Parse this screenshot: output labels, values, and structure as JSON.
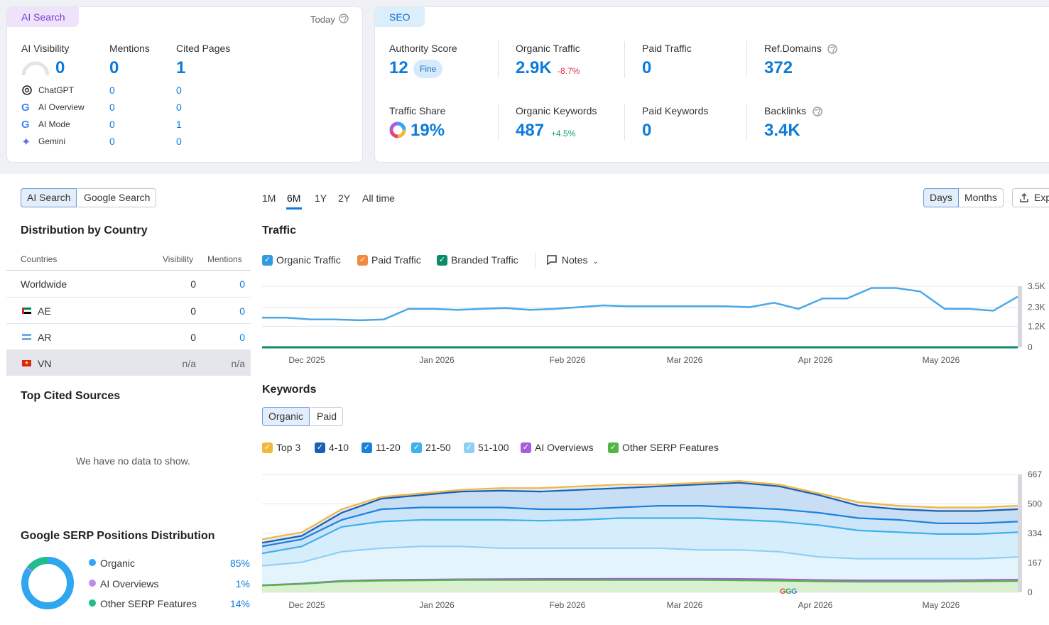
{
  "ai_card": {
    "tag": "AI Search",
    "date": "Today",
    "headers": {
      "visibility": "AI Visibility",
      "mentions": "Mentions",
      "cited": "Cited Pages"
    },
    "totals": {
      "visibility": "0",
      "mentions": "0",
      "cited": "1"
    },
    "rows": [
      {
        "name": "ChatGPT",
        "mentions": "0",
        "cited": "0"
      },
      {
        "name": "AI Overview",
        "mentions": "0",
        "cited": "0"
      },
      {
        "name": "AI Mode",
        "mentions": "0",
        "cited": "1"
      },
      {
        "name": "Gemini",
        "mentions": "0",
        "cited": "0"
      }
    ]
  },
  "seo_card": {
    "tag": "SEO",
    "authority": {
      "label": "Authority Score",
      "value": "12",
      "badge": "Fine"
    },
    "organic_traffic": {
      "label": "Organic Traffic",
      "value": "2.9K",
      "delta": "-8.7%"
    },
    "paid_traffic": {
      "label": "Paid Traffic",
      "value": "0"
    },
    "ref_domains": {
      "label": "Ref.Domains",
      "value": "372"
    },
    "traffic_share": {
      "label": "Traffic Share",
      "value": "19%"
    },
    "organic_keywords": {
      "label": "Organic Keywords",
      "value": "487",
      "delta": "+4.5%"
    },
    "paid_keywords": {
      "label": "Paid Keywords",
      "value": "0"
    },
    "backlinks": {
      "label": "Backlinks",
      "value": "3.4K"
    }
  },
  "left": {
    "toggle": {
      "ai": "AI Search",
      "google": "Google Search"
    },
    "dist_title": "Distribution by Country",
    "cols": {
      "countries": "Countries",
      "visibility": "Visibility",
      "mentions": "Mentions"
    },
    "countries": [
      {
        "name": "Worldwide",
        "visibility": "0",
        "mentions": "0"
      },
      {
        "name": "AE",
        "visibility": "0",
        "mentions": "0"
      },
      {
        "name": "AR",
        "visibility": "0",
        "mentions": "0"
      },
      {
        "name": "VN",
        "visibility": "n/a",
        "mentions": "n/a"
      }
    ],
    "cited_title": "Top Cited Sources",
    "no_data": "We have no data to show.",
    "serp_title": "Google SERP Positions Distribution",
    "serp": [
      {
        "name": "Organic",
        "value": "85%",
        "color": "#2ea6f0"
      },
      {
        "name": "AI Overviews",
        "value": "1%",
        "color": "#c08be8"
      },
      {
        "name": "Other SERP Features",
        "value": "14%",
        "color": "#1fbc8f"
      }
    ]
  },
  "main": {
    "periods": [
      "1M",
      "6M",
      "1Y",
      "2Y",
      "All time"
    ],
    "days": "Days",
    "months": "Months",
    "export": "Exp",
    "traffic_title": "Traffic",
    "traffic_legend": [
      {
        "name": "Organic Traffic",
        "color": "#2f9be0"
      },
      {
        "name": "Paid Traffic",
        "color": "#f08a3e"
      },
      {
        "name": "Branded Traffic",
        "color": "#0a8c6a"
      }
    ],
    "notes": "Notes",
    "keywords_title": "Keywords",
    "kw_toggle": {
      "organic": "Organic",
      "paid": "Paid"
    },
    "kw_legend": [
      {
        "name": "Top 3",
        "color": "#f3b63f"
      },
      {
        "name": "4-10",
        "color": "#1a5fb4"
      },
      {
        "name": "11-20",
        "color": "#1b82dc"
      },
      {
        "name": "21-50",
        "color": "#3eb0ec"
      },
      {
        "name": "51-100",
        "color": "#8fcff5"
      },
      {
        "name": "AI Overviews",
        "color": "#a85de0"
      },
      {
        "name": "Other SERP Features",
        "color": "#52b545"
      }
    ]
  },
  "chart_data": [
    {
      "type": "line",
      "title": "Traffic",
      "x_ticks": [
        "Dec 2025",
        "Jan 2026",
        "Feb 2026",
        "Mar 2026",
        "Apr 2026",
        "May 2026"
      ],
      "y_ticks": [
        "0",
        "1.2K",
        "2.3K",
        "3.5K"
      ],
      "ylim": [
        0,
        3500
      ],
      "series": [
        {
          "name": "Organic Traffic",
          "values": [
            1700,
            1700,
            1600,
            1600,
            1550,
            1600,
            2200,
            2200,
            2150,
            2200,
            2250,
            2150,
            2200,
            2300,
            2400,
            2350,
            2350,
            2350,
            2350,
            2350,
            2300,
            2550,
            2200,
            2800,
            2800,
            3400,
            3400,
            3200,
            2200,
            2200,
            2100,
            2900
          ]
        },
        {
          "name": "Branded Traffic",
          "values": [
            0,
            0,
            0,
            0,
            0,
            0,
            0,
            0,
            0,
            0,
            0,
            0,
            0,
            0,
            0,
            0,
            0,
            0,
            0,
            0,
            0,
            0,
            0,
            0,
            0,
            0,
            0,
            0,
            0,
            0,
            0,
            0
          ]
        }
      ]
    },
    {
      "type": "area",
      "title": "Keywords",
      "x_ticks": [
        "Dec 2025",
        "Jan 2026",
        "Feb 2026",
        "Mar 2026",
        "Apr 2026",
        "May 2026"
      ],
      "y_ticks": [
        "0",
        "167",
        "334",
        "500",
        "667"
      ],
      "ylim": [
        0,
        667
      ],
      "series": [
        {
          "name": "Top 3",
          "values": [
            300,
            340,
            470,
            540,
            560,
            580,
            590,
            590,
            600,
            610,
            610,
            620,
            630,
            610,
            560,
            510,
            490,
            480,
            480,
            490
          ]
        },
        {
          "name": "4-10",
          "values": [
            280,
            320,
            450,
            530,
            550,
            570,
            575,
            570,
            580,
            590,
            600,
            610,
            620,
            600,
            550,
            490,
            470,
            460,
            460,
            470
          ]
        },
        {
          "name": "11-20",
          "values": [
            260,
            300,
            410,
            470,
            480,
            480,
            480,
            470,
            470,
            480,
            490,
            490,
            480,
            470,
            450,
            420,
            410,
            390,
            390,
            400
          ]
        },
        {
          "name": "21-50",
          "values": [
            220,
            260,
            370,
            400,
            410,
            410,
            410,
            405,
            410,
            420,
            420,
            420,
            410,
            400,
            380,
            350,
            340,
            330,
            330,
            340
          ]
        },
        {
          "name": "51-100",
          "values": [
            150,
            170,
            230,
            250,
            260,
            260,
            250,
            250,
            250,
            250,
            250,
            240,
            240,
            230,
            200,
            190,
            190,
            190,
            190,
            200
          ]
        },
        {
          "name": "AI Overviews",
          "values": [
            40,
            50,
            65,
            70,
            72,
            74,
            75,
            76,
            76,
            77,
            77,
            77,
            76,
            74,
            70,
            68,
            68,
            68,
            70,
            72
          ]
        },
        {
          "name": "Other SERP Features",
          "values": [
            38,
            48,
            62,
            66,
            68,
            70,
            70,
            70,
            70,
            70,
            70,
            70,
            68,
            66,
            62,
            60,
            60,
            60,
            62,
            64
          ]
        }
      ]
    }
  ]
}
